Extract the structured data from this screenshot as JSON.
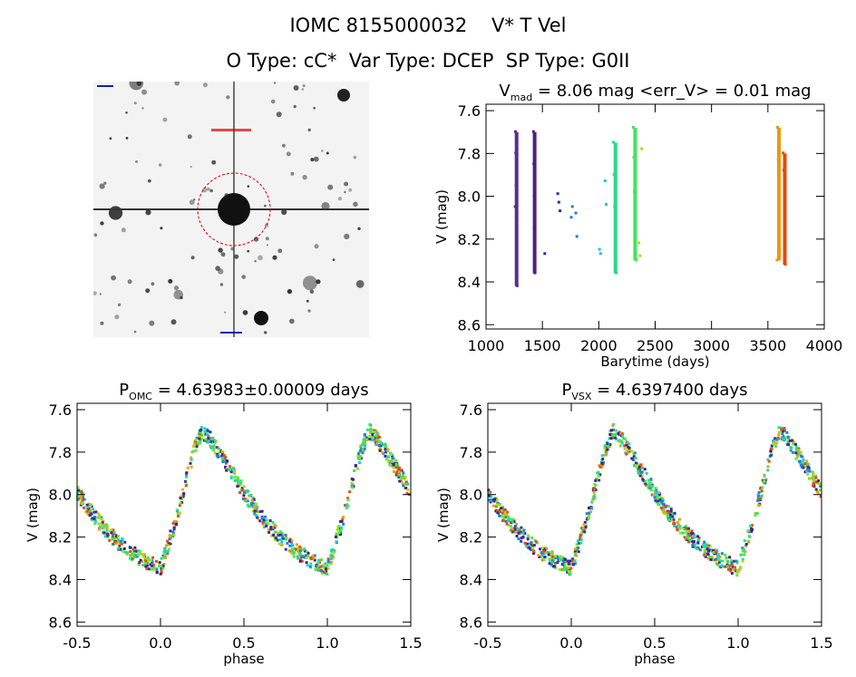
{
  "header": {
    "line1": "IOMC 8155000032    V* T Vel",
    "line2": "O Type: cC*  Var Type: DCEP  SP Type: G0II"
  },
  "finder_chart": {
    "background_color": "#f3f3f3",
    "circle_color": "#d40000",
    "label_color": "#1a1aa8"
  },
  "chart_data": [
    {
      "type": "scatter",
      "title": "V_mad = 8.06 mag <err_V> = 0.01 mag",
      "title_parts": {
        "main": "V",
        "sub": "mad",
        "rest": " = 8.06 mag <err_V> = 0.01 mag"
      },
      "xlabel": "Barytime (days)",
      "ylabel": "V (mag)",
      "xlim": [
        1000,
        4000
      ],
      "ylim": [
        8.62,
        7.57
      ],
      "y_inverted": true,
      "xticks": [
        1000,
        1500,
        2000,
        2500,
        3000,
        3500,
        4000
      ],
      "yticks": [
        7.6,
        7.8,
        8.0,
        8.2,
        8.4,
        8.6
      ],
      "series": [
        {
          "color": "#5a2d91",
          "points": [
            [
              1265,
              7.7
            ],
            [
              1268,
              7.8
            ],
            [
              1270,
              7.95
            ],
            [
              1272,
              8.1
            ],
            [
              1275,
              8.25
            ],
            [
              1278,
              8.38
            ],
            [
              1262,
              8.05
            ],
            [
              1280,
              8.42
            ]
          ]
        },
        {
          "color": "#4a1f86",
          "points": [
            [
              1425,
              7.7
            ],
            [
              1428,
              7.85
            ],
            [
              1430,
              8.0
            ],
            [
              1432,
              8.15
            ],
            [
              1435,
              8.3
            ],
            [
              1438,
              8.36
            ]
          ]
        },
        {
          "color": "#2a2fa0",
          "points": [
            [
              1525,
              8.27
            ],
            [
              1640,
              7.99
            ],
            [
              1650,
              8.03
            ],
            [
              1660,
              8.07
            ]
          ]
        },
        {
          "color": "#1f7fd6",
          "points": [
            [
              1770,
              8.05
            ],
            [
              1800,
              8.08
            ],
            [
              1810,
              8.19
            ],
            [
              1760,
              8.1
            ]
          ]
        },
        {
          "color": "#1fc3e0",
          "points": [
            [
              2010,
              8.25
            ],
            [
              2020,
              8.27
            ],
            [
              2060,
              7.93
            ],
            [
              2070,
              8.04
            ]
          ]
        },
        {
          "color": "#27d98a",
          "points": [
            [
              2135,
              7.75
            ],
            [
              2140,
              7.9
            ],
            [
              2145,
              8.05
            ],
            [
              2150,
              8.2
            ],
            [
              2155,
              8.33
            ],
            [
              2160,
              8.36
            ]
          ]
        },
        {
          "color": "#3ee65a",
          "points": [
            [
              2310,
              7.68
            ],
            [
              2315,
              7.82
            ],
            [
              2320,
              7.98
            ],
            [
              2325,
              8.12
            ],
            [
              2330,
              8.26
            ],
            [
              2335,
              8.3
            ]
          ]
        },
        {
          "color": "#a8dc18",
          "points": [
            [
              2360,
              8.22
            ],
            [
              2370,
              8.28
            ],
            [
              2385,
              7.78
            ]
          ]
        },
        {
          "color": "#e89a12",
          "points": [
            [
              3590,
              7.68
            ],
            [
              3595,
              7.83
            ],
            [
              3600,
              7.95
            ],
            [
              3605,
              8.1
            ],
            [
              3610,
              8.25
            ],
            [
              3585,
              8.3
            ]
          ]
        },
        {
          "color": "#e14a0c",
          "points": [
            [
              3640,
              7.8
            ],
            [
              3645,
              7.88
            ],
            [
              3650,
              8.18
            ],
            [
              3655,
              8.25
            ],
            [
              3660,
              8.32
            ]
          ]
        }
      ]
    },
    {
      "type": "scatter",
      "title": "P_OMC = 4.63983±0.00009 days",
      "title_parts": {
        "main": "P",
        "sub": "OMC",
        "rest": " = 4.63983±0.00009 days"
      },
      "xlabel": "phase",
      "ylabel": "V (mag)",
      "xlim": [
        -0.5,
        1.5
      ],
      "ylim": [
        8.62,
        7.57
      ],
      "y_inverted": true,
      "xticks": [
        -0.5,
        0.0,
        0.5,
        1.0,
        1.5
      ],
      "yticks": [
        7.6,
        7.8,
        8.0,
        8.2,
        8.4,
        8.6
      ],
      "curve": {
        "phase": [
          0.0,
          0.1,
          0.2,
          0.25,
          0.3,
          0.4,
          0.5,
          0.6,
          0.7,
          0.8,
          0.9,
          1.0
        ],
        "mag": [
          8.35,
          8.1,
          7.8,
          7.7,
          7.74,
          7.86,
          7.99,
          8.1,
          8.19,
          8.26,
          8.31,
          8.35
        ]
      },
      "point_colors": [
        "#4b1d8a",
        "#2c39a8",
        "#1f86d8",
        "#1ad1d1",
        "#29e37c",
        "#52ea3f",
        "#a3dd17",
        "#e8a314",
        "#e0520e"
      ]
    },
    {
      "type": "scatter",
      "title": "P_VSX = 4.6397400 days",
      "title_parts": {
        "main": "P",
        "sub": "VSX",
        "rest": " = 4.6397400 days"
      },
      "xlabel": "phase",
      "ylabel": "V (mag)",
      "xlim": [
        -0.5,
        1.5
      ],
      "ylim": [
        8.62,
        7.57
      ],
      "y_inverted": true,
      "xticks": [
        -0.5,
        0.0,
        0.5,
        1.0,
        1.5
      ],
      "yticks": [
        7.6,
        7.8,
        8.0,
        8.2,
        8.4,
        8.6
      ],
      "curve": {
        "phase": [
          0.0,
          0.1,
          0.2,
          0.25,
          0.3,
          0.4,
          0.5,
          0.6,
          0.7,
          0.8,
          0.9,
          1.0
        ],
        "mag": [
          8.35,
          8.1,
          7.8,
          7.7,
          7.74,
          7.86,
          7.99,
          8.1,
          8.19,
          8.26,
          8.31,
          8.35
        ]
      },
      "point_colors": [
        "#4b1d8a",
        "#2c39a8",
        "#1f86d8",
        "#1ad1d1",
        "#29e37c",
        "#52ea3f",
        "#a3dd17",
        "#e8a314",
        "#e0520e"
      ]
    }
  ]
}
